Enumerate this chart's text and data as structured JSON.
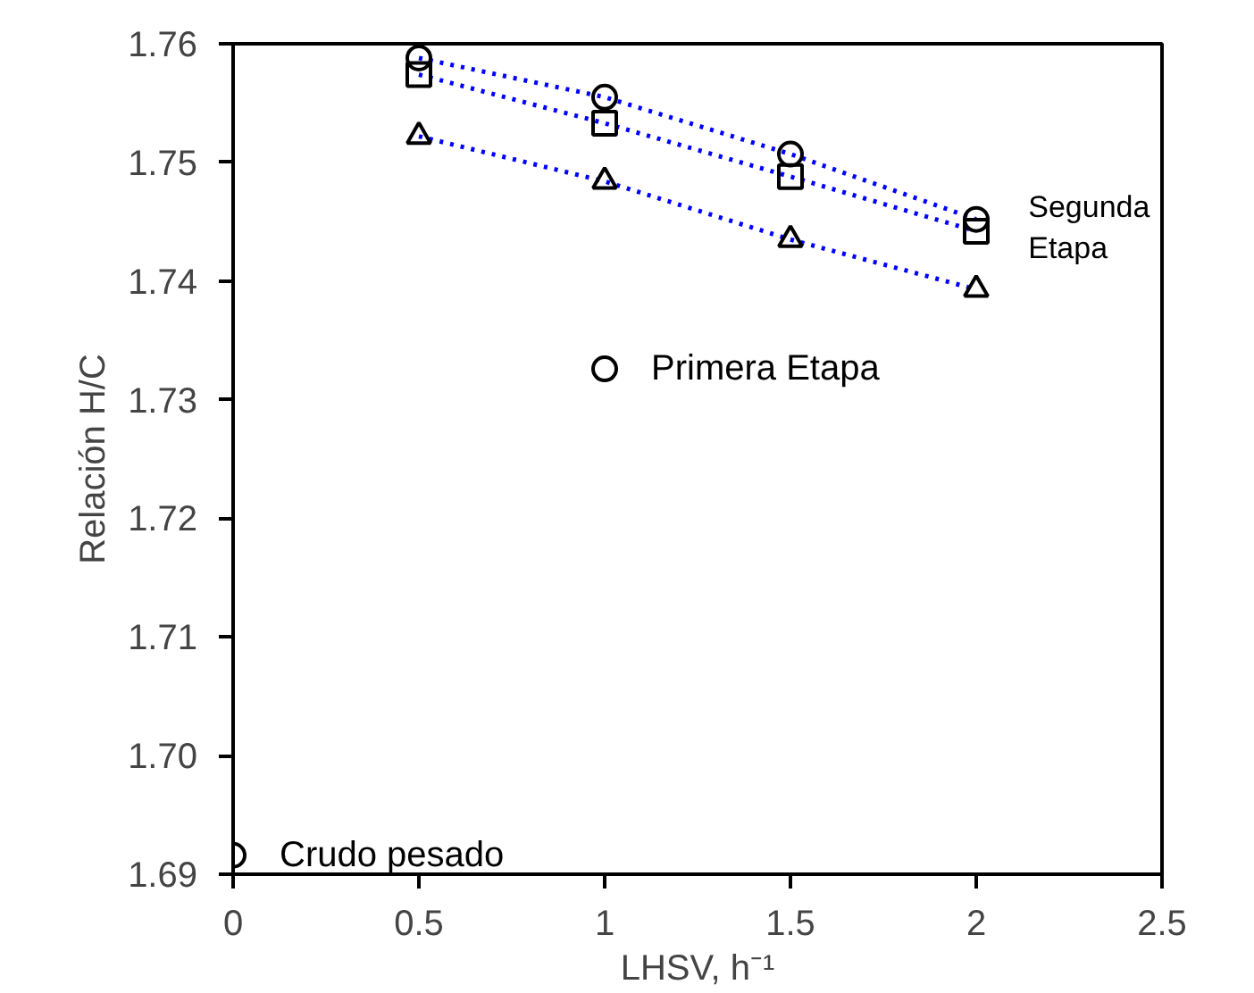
{
  "chart_data": {
    "type": "scatter",
    "xlabel": "LHSV, h⁻¹",
    "ylabel": "Relación H/C",
    "xlim": [
      0,
      2.5
    ],
    "ylim": [
      1.69,
      1.76
    ],
    "xticks": [
      0,
      0.5,
      1,
      1.5,
      2,
      2.5
    ],
    "yticks": [
      {
        "value": 1.69,
        "label": "1.69"
      },
      {
        "value": 1.7,
        "label": "1.70"
      },
      {
        "value": 1.71,
        "label": "1.71"
      },
      {
        "value": 1.72,
        "label": "1.72"
      },
      {
        "value": 1.73,
        "label": "1.73"
      },
      {
        "value": 1.74,
        "label": "1.74"
      },
      {
        "value": 1.75,
        "label": "1.75"
      },
      {
        "value": 1.76,
        "label": "1.76"
      }
    ],
    "grid": false,
    "series": [
      {
        "type": "line",
        "color": "#0000ff",
        "line_style": "dotted",
        "marker": "none",
        "x": [
          0.5,
          1,
          1.5,
          2
        ],
        "values": [
          1.7588,
          1.7555,
          1.7507,
          1.7452
        ]
      },
      {
        "type": "line",
        "color": "#0000ff",
        "line_style": "dotted",
        "marker": "none",
        "x": [
          0.5,
          1,
          1.5,
          2
        ],
        "values": [
          1.7574,
          1.7533,
          1.7488,
          1.7442
        ]
      },
      {
        "type": "line",
        "color": "#0000ff",
        "line_style": "dotted",
        "marker": "none",
        "x": [
          0.5,
          1,
          1.5,
          2
        ],
        "values": [
          1.7522,
          1.7484,
          1.7435,
          1.7393
        ]
      },
      {
        "color": "#000000",
        "marker": "circle",
        "x": [
          0.5,
          1,
          1.5,
          2
        ],
        "values": [
          1.7588,
          1.7555,
          1.7507,
          1.7452
        ]
      },
      {
        "color": "#000000",
        "marker": "square",
        "x": [
          0.5,
          1,
          1.5,
          2
        ],
        "values": [
          1.7574,
          1.7533,
          1.7488,
          1.7442
        ]
      },
      {
        "color": "#000000",
        "marker": "triangle",
        "x": [
          0.5,
          1,
          1.5,
          2
        ],
        "values": [
          1.7522,
          1.7484,
          1.7435,
          1.7393
        ]
      },
      {
        "color": "#000000",
        "marker": "circle",
        "x": [
          1
        ],
        "values": [
          1.7326
        ]
      },
      {
        "color": "#000000",
        "marker": "circle",
        "x": [
          0
        ],
        "values": [
          1.6916
        ]
      }
    ],
    "annotations": [
      {
        "text": "Segunda\nEtapa",
        "x": 2,
        "y": 1.7445
      },
      {
        "text": "Primera Etapa",
        "x": 1,
        "y": 1.7326
      },
      {
        "text": "Crudo pesado",
        "x": 0,
        "y": 1.6916
      }
    ]
  }
}
